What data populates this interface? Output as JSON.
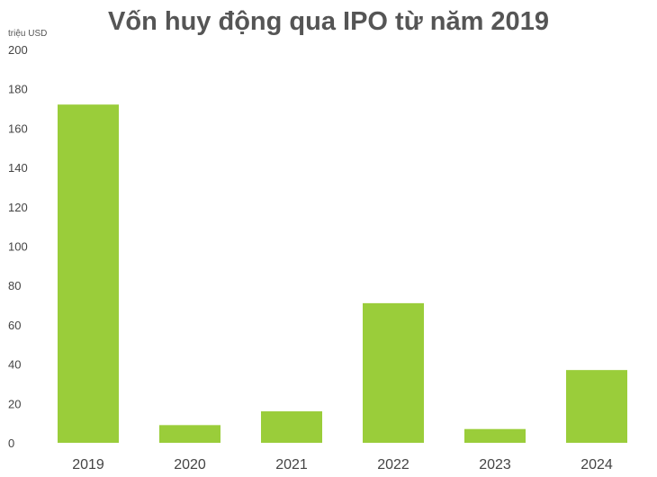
{
  "chart_data": {
    "type": "bar",
    "title": "Vốn huy động qua IPO từ năm 2019",
    "ylabel": "triệu USD",
    "xlabel": "",
    "categories": [
      "2019",
      "2020",
      "2021",
      "2022",
      "2023",
      "2024"
    ],
    "values": [
      172,
      9,
      16,
      71,
      7,
      37
    ],
    "ylim": [
      0,
      200
    ],
    "yticks": [
      "0",
      "20",
      "40",
      "60",
      "80",
      "100",
      "120",
      "140",
      "160",
      "180",
      "200"
    ],
    "grid": false,
    "legend": "none",
    "bar_color": "#9ACD3A"
  }
}
